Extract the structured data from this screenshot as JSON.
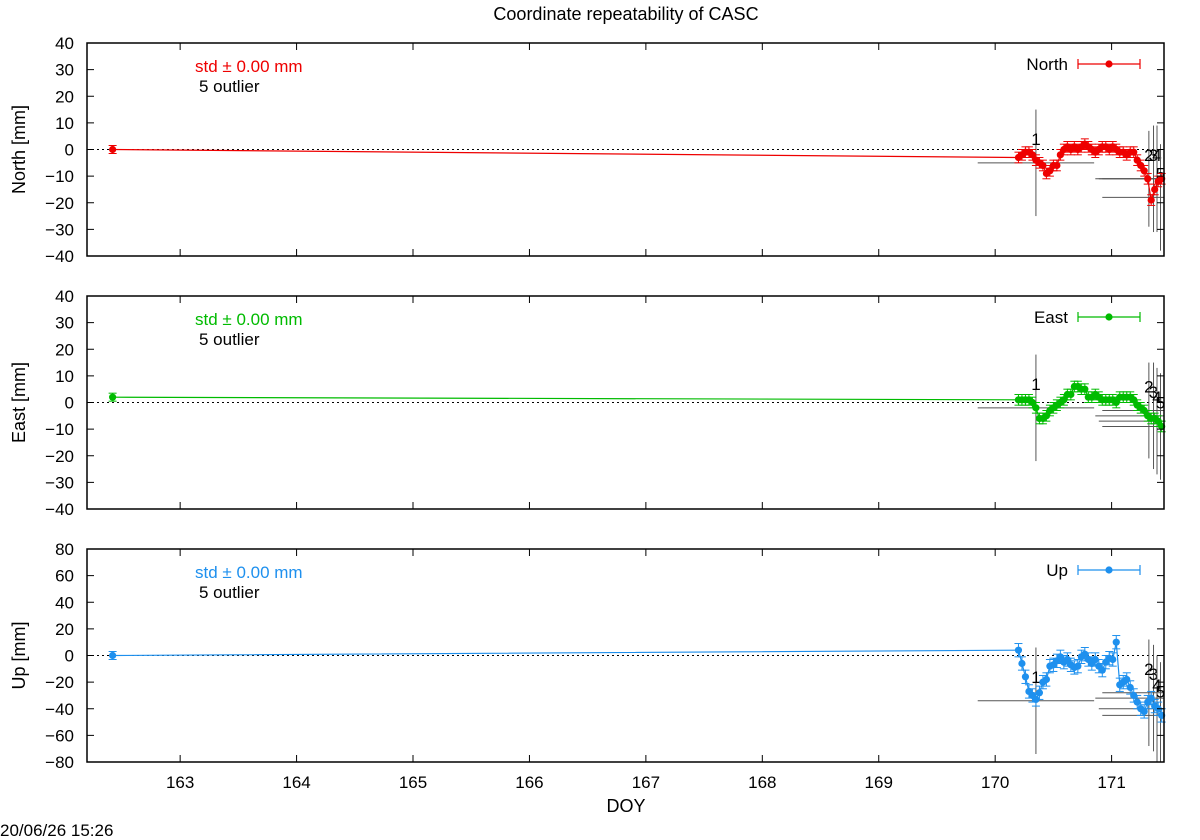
{
  "title": "Coordinate repeatability of CASC",
  "footer_timestamp": "20/06/26 15:26",
  "chart_data": [
    {
      "type": "line",
      "panel": "north",
      "ylabel": "North [mm]",
      "xlabel": "",
      "ylim": [
        -40,
        40
      ],
      "yticks": [
        -40,
        -30,
        -20,
        -10,
        0,
        10,
        20,
        30,
        40
      ],
      "xlim": [
        162.2,
        171.45
      ],
      "xticks": [
        163,
        164,
        165,
        166,
        167,
        168,
        169,
        170,
        171
      ],
      "color": "#ee0000",
      "std_text": "std ± 0.00 mm",
      "outlier_text": "5 outlier",
      "legend": "North",
      "legend_position": "top-right",
      "zero_line": true,
      "series": [
        {
          "name": "North",
          "x": [
            162.42,
            170.2,
            170.23,
            170.26,
            170.29,
            170.32,
            170.35,
            170.38,
            170.41,
            170.44,
            170.47,
            170.5,
            170.53,
            170.56,
            170.59,
            170.62,
            170.65,
            170.68,
            170.71,
            170.74,
            170.77,
            170.8,
            170.83,
            170.86,
            170.89,
            170.92,
            170.95,
            170.98,
            171.01,
            171.04,
            171.07,
            171.1,
            171.13,
            171.16,
            171.19,
            171.22,
            171.25,
            171.28,
            171.31,
            171.34,
            171.37,
            171.4,
            171.43
          ],
          "y": [
            0,
            -3,
            -2,
            -1,
            -1,
            -2,
            -4,
            -5,
            -6,
            -9,
            -8,
            -6,
            -6,
            -2,
            0,
            1,
            0,
            1,
            0,
            1,
            2,
            1,
            0,
            -1,
            0,
            1,
            1,
            0,
            1,
            0,
            -1,
            -1,
            -2,
            -1,
            -1,
            -4,
            -6,
            -8,
            -11,
            -19,
            -15,
            -12,
            -11
          ],
          "err": [
            1.5,
            2,
            2,
            2,
            2,
            2,
            2,
            2,
            2,
            2,
            2,
            2,
            2,
            2,
            2,
            2,
            2,
            2,
            2,
            2,
            2,
            2,
            2,
            2,
            2,
            2,
            2,
            2,
            2,
            2,
            2,
            2,
            2,
            2,
            2,
            2,
            2,
            2,
            2,
            2,
            2,
            2,
            2
          ]
        }
      ],
      "outliers": [
        {
          "label": "1",
          "x": 170.35,
          "y": -5,
          "xerr": 0.5,
          "yerr": 20
        },
        {
          "label": "2",
          "x": 171.32,
          "y": -11,
          "xerr": 0.4,
          "yerr": 18
        },
        {
          "label": "3",
          "x": 171.36,
          "y": -11,
          "xerr": 0.5,
          "yerr": 20
        },
        {
          "label": "4",
          "x": 171.39,
          "y": -11,
          "xerr": 0.5,
          "yerr": 20
        },
        {
          "label": "5",
          "x": 171.42,
          "y": -18,
          "xerr": 0.5,
          "yerr": 20
        }
      ]
    },
    {
      "type": "line",
      "panel": "east",
      "ylabel": "East [mm]",
      "xlabel": "",
      "ylim": [
        -40,
        40
      ],
      "yticks": [
        -40,
        -30,
        -20,
        -10,
        0,
        10,
        20,
        30,
        40
      ],
      "xlim": [
        162.2,
        171.45
      ],
      "xticks": [
        163,
        164,
        165,
        166,
        167,
        168,
        169,
        170,
        171
      ],
      "color": "#00bb00",
      "std_text": "std ± 0.00 mm",
      "outlier_text": "5 outlier",
      "legend": "East",
      "legend_position": "top-right",
      "zero_line": true,
      "series": [
        {
          "name": "East",
          "x": [
            162.42,
            170.2,
            170.23,
            170.26,
            170.29,
            170.32,
            170.35,
            170.38,
            170.41,
            170.44,
            170.47,
            170.5,
            170.53,
            170.56,
            170.59,
            170.62,
            170.65,
            170.68,
            170.71,
            170.74,
            170.77,
            170.8,
            170.83,
            170.86,
            170.89,
            170.92,
            170.95,
            170.98,
            171.01,
            171.04,
            171.07,
            171.1,
            171.13,
            171.16,
            171.19,
            171.22,
            171.25,
            171.28,
            171.31,
            171.34,
            171.37,
            171.4,
            171.43
          ],
          "y": [
            2,
            1,
            1,
            1,
            1,
            0,
            -2,
            -6,
            -6,
            -5,
            -3,
            -2,
            -1,
            0,
            1,
            3,
            3,
            6,
            6,
            5,
            5,
            2,
            2,
            3,
            2,
            1,
            1,
            1,
            1,
            0,
            2,
            2,
            2,
            2,
            1,
            -1,
            -2,
            -3,
            -5,
            -6,
            -6,
            -7,
            -9
          ],
          "err": [
            1.5,
            2,
            2,
            2,
            2,
            2,
            2,
            2,
            2,
            2,
            2,
            2,
            2,
            2,
            2,
            2,
            2,
            2,
            2,
            2,
            2,
            2,
            2,
            2,
            2,
            2,
            2,
            2,
            2,
            2,
            2,
            2,
            2,
            2,
            2,
            2,
            2,
            2,
            2,
            2,
            2,
            2,
            2
          ]
        }
      ],
      "outliers": [
        {
          "label": "1",
          "x": 170.35,
          "y": -2,
          "xerr": 0.5,
          "yerr": 20
        },
        {
          "label": "2",
          "x": 171.32,
          "y": -3,
          "xerr": 0.4,
          "yerr": 18
        },
        {
          "label": "3",
          "x": 171.36,
          "y": -5,
          "xerr": 0.5,
          "yerr": 20
        },
        {
          "label": "4",
          "x": 171.39,
          "y": -7,
          "xerr": 0.5,
          "yerr": 20
        },
        {
          "label": "5",
          "x": 171.42,
          "y": -9,
          "xerr": 0.5,
          "yerr": 20
        }
      ]
    },
    {
      "type": "line",
      "panel": "up",
      "ylabel": "Up [mm]",
      "xlabel": "DOY",
      "ylim": [
        -80,
        80
      ],
      "yticks": [
        -80,
        -60,
        -40,
        -20,
        0,
        20,
        40,
        60,
        80
      ],
      "xlim": [
        162.2,
        171.45
      ],
      "xticks": [
        163,
        164,
        165,
        166,
        167,
        168,
        169,
        170,
        171
      ],
      "color": "#1e90ee",
      "std_text": "std ± 0.00 mm",
      "outlier_text": "5 outlier",
      "legend": "Up",
      "legend_position": "top-right",
      "zero_line": true,
      "series": [
        {
          "name": "Up",
          "x": [
            162.42,
            170.2,
            170.23,
            170.26,
            170.29,
            170.32,
            170.35,
            170.38,
            170.41,
            170.44,
            170.47,
            170.5,
            170.53,
            170.56,
            170.59,
            170.62,
            170.65,
            170.68,
            170.71,
            170.74,
            170.77,
            170.8,
            170.83,
            170.86,
            170.89,
            170.92,
            170.95,
            170.98,
            171.01,
            171.04,
            171.07,
            171.1,
            171.13,
            171.16,
            171.19,
            171.22,
            171.25,
            171.28,
            171.31,
            171.34,
            171.37,
            171.4,
            171.43
          ],
          "y": [
            0,
            4,
            -6,
            -16,
            -27,
            -30,
            -33,
            -28,
            -20,
            -18,
            -8,
            -7,
            -4,
            -1,
            -5,
            -3,
            -7,
            -9,
            -8,
            -1,
            1,
            -3,
            -6,
            -3,
            -8,
            -11,
            -5,
            -2,
            -3,
            10,
            -22,
            -20,
            -18,
            -24,
            -30,
            -35,
            -40,
            -42,
            -35,
            -32,
            -38,
            -40,
            -45
          ],
          "err": [
            3,
            5,
            5,
            5,
            5,
            5,
            5,
            5,
            5,
            5,
            5,
            5,
            5,
            5,
            5,
            5,
            5,
            5,
            5,
            5,
            5,
            5,
            5,
            5,
            5,
            5,
            5,
            5,
            5,
            5,
            5,
            5,
            5,
            5,
            5,
            5,
            5,
            5,
            5,
            5,
            5,
            5,
            5
          ]
        }
      ],
      "outliers": [
        {
          "label": "1",
          "x": 170.35,
          "y": -34,
          "xerr": 0.5,
          "yerr": 40
        },
        {
          "label": "2",
          "x": 171.32,
          "y": -28,
          "xerr": 0.4,
          "yerr": 40
        },
        {
          "label": "3",
          "x": 171.36,
          "y": -32,
          "xerr": 0.5,
          "yerr": 40
        },
        {
          "label": "4",
          "x": 171.39,
          "y": -40,
          "xerr": 0.5,
          "yerr": 40
        },
        {
          "label": "5",
          "x": 171.42,
          "y": -45,
          "xerr": 0.5,
          "yerr": 40
        }
      ]
    }
  ]
}
